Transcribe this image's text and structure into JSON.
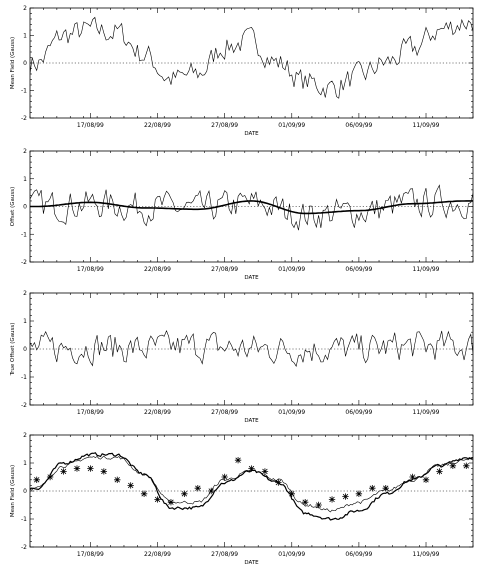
{
  "chart_data": [
    {
      "type": "line",
      "title": "",
      "xlabel": "DATE",
      "ylabel": "Mean Field (Gauss)",
      "ylim": [
        -2,
        2
      ],
      "yticks": [
        "-2",
        "-1",
        "0",
        "1",
        "2"
      ],
      "xticks": [
        "17/08/99",
        "22/08/99",
        "27/08/99",
        "01/09/99",
        "06/09/99",
        "11/09/99"
      ],
      "zero_line": true,
      "series": [
        {
          "name": "",
          "x": [
            "13/08/99",
            "15/08/99",
            "17/08/99",
            "19/08/99",
            "21/08/99",
            "23/08/99",
            "25/08/99",
            "27/08/99",
            "29/08/99",
            "31/08/99",
            "02/09/99",
            "04/09/99",
            "06/09/99",
            "08/09/99",
            "10/09/99",
            "12/09/99",
            "14/09/99"
          ],
          "values": [
            0.0,
            1.0,
            1.2,
            1.1,
            0.3,
            -0.6,
            -0.4,
            0.6,
            0.8,
            0.0,
            -0.7,
            -0.9,
            -0.5,
            0.0,
            0.5,
            1.2,
            1.5
          ]
        }
      ]
    },
    {
      "type": "line",
      "title": "",
      "xlabel": "DATE",
      "ylabel": "Offset (Gauss)",
      "ylim": [
        -2,
        2
      ],
      "yticks": [
        "-2",
        "-1",
        "0",
        "1",
        "2"
      ],
      "xticks": [
        "17/08/99",
        "22/08/99",
        "27/08/99",
        "01/09/99",
        "06/09/99",
        "11/09/99"
      ],
      "zero_line": true,
      "series": [
        {
          "name": "",
          "x": [
            "13/08/99",
            "17/08/99",
            "21/08/99",
            "25/08/99",
            "29/08/99",
            "02/09/99",
            "06/09/99",
            "10/09/99",
            "14/09/99"
          ],
          "values": [
            0.0,
            0.1,
            0.0,
            -0.1,
            0.1,
            -0.3,
            -0.2,
            0.1,
            0.2
          ]
        },
        {
          "name": "",
          "x": [
            "13/08/99",
            "17/08/99",
            "21/08/99",
            "25/08/99",
            "29/08/99",
            "02/09/99",
            "06/09/99",
            "10/09/99",
            "14/09/99"
          ],
          "values": [
            0.0,
            0.15,
            -0.05,
            -0.1,
            0.2,
            -0.25,
            -0.15,
            0.1,
            0.2
          ]
        }
      ]
    },
    {
      "type": "line",
      "title": "",
      "xlabel": "DATE",
      "ylabel": "True Offset (Gauss)",
      "ylim": [
        -2,
        2
      ],
      "yticks": [
        "-2",
        "-1",
        "0",
        "1",
        "2"
      ],
      "xticks": [
        "17/08/99",
        "22/08/99",
        "27/08/99",
        "01/09/99",
        "06/09/99",
        "11/09/99"
      ],
      "zero_line": true,
      "series": [
        {
          "name": "",
          "x": [
            "13/08/99",
            "17/08/99",
            "21/08/99",
            "25/08/99",
            "29/08/99",
            "02/09/99",
            "06/09/99",
            "10/09/99",
            "14/09/99"
          ],
          "values": [
            0.0,
            0.1,
            0.0,
            0.1,
            0.0,
            0.0,
            0.0,
            0.1,
            0.1
          ]
        }
      ]
    },
    {
      "type": "line",
      "title": "",
      "xlabel": "DATE",
      "ylabel": "Mean Field (Gauss)",
      "ylim": [
        -2,
        2
      ],
      "yticks": [
        "-2",
        "-1",
        "0",
        "1",
        "2"
      ],
      "xticks": [
        "17/08/99",
        "22/08/99",
        "27/08/99",
        "01/09/99",
        "06/09/99",
        "11/09/99"
      ],
      "zero_line": true,
      "series": [
        {
          "name": "",
          "x": [
            "13/08/99",
            "15/08/99",
            "17/08/99",
            "19/08/99",
            "21/08/99",
            "23/08/99",
            "25/08/99",
            "27/08/99",
            "29/08/99",
            "31/08/99",
            "02/09/99",
            "04/09/99",
            "06/09/99",
            "08/09/99",
            "10/09/99",
            "12/09/99",
            "14/09/99"
          ],
          "values": [
            0.1,
            1.0,
            1.3,
            1.3,
            0.6,
            -0.6,
            -0.6,
            0.3,
            0.7,
            0.3,
            -0.8,
            -1.0,
            -0.7,
            -0.1,
            0.4,
            0.9,
            1.2
          ]
        },
        {
          "name": "",
          "x": [
            "13/08/99",
            "15/08/99",
            "17/08/99",
            "19/08/99",
            "21/08/99",
            "23/08/99",
            "25/08/99",
            "27/08/99",
            "29/08/99",
            "31/08/99",
            "02/09/99",
            "04/09/99",
            "06/09/99",
            "08/09/99",
            "10/09/99",
            "12/09/99",
            "14/09/99"
          ],
          "values": [
            0.1,
            0.9,
            1.2,
            1.2,
            0.6,
            -0.4,
            -0.4,
            0.4,
            0.7,
            0.4,
            -0.5,
            -0.7,
            -0.4,
            0.0,
            0.4,
            0.9,
            1.1
          ]
        },
        {
          "name": "",
          "marker": "star",
          "x": [
            "13/08/99",
            "14/08/99",
            "15/08/99",
            "16/08/99",
            "17/08/99",
            "18/08/99",
            "19/08/99",
            "20/08/99",
            "21/08/99",
            "22/08/99",
            "23/08/99",
            "24/08/99",
            "25/08/99",
            "26/08/99",
            "27/08/99",
            "28/08/99",
            "29/08/99",
            "30/08/99",
            "31/08/99",
            "01/09/99",
            "02/09/99",
            "03/09/99",
            "04/09/99",
            "05/09/99",
            "06/09/99",
            "07/09/99",
            "08/09/99",
            "10/09/99",
            "11/09/99",
            "12/09/99",
            "13/09/99",
            "14/09/99"
          ],
          "values": [
            0.4,
            0.5,
            0.7,
            0.8,
            0.8,
            0.7,
            0.4,
            0.2,
            -0.1,
            -0.3,
            -0.4,
            -0.1,
            0.1,
            0.0,
            0.5,
            1.1,
            0.8,
            0.7,
            0.3,
            -0.1,
            -0.4,
            -0.5,
            -0.3,
            -0.2,
            -0.1,
            0.1,
            0.1,
            0.5,
            0.4,
            0.7,
            0.9,
            0.9
          ]
        }
      ]
    }
  ]
}
